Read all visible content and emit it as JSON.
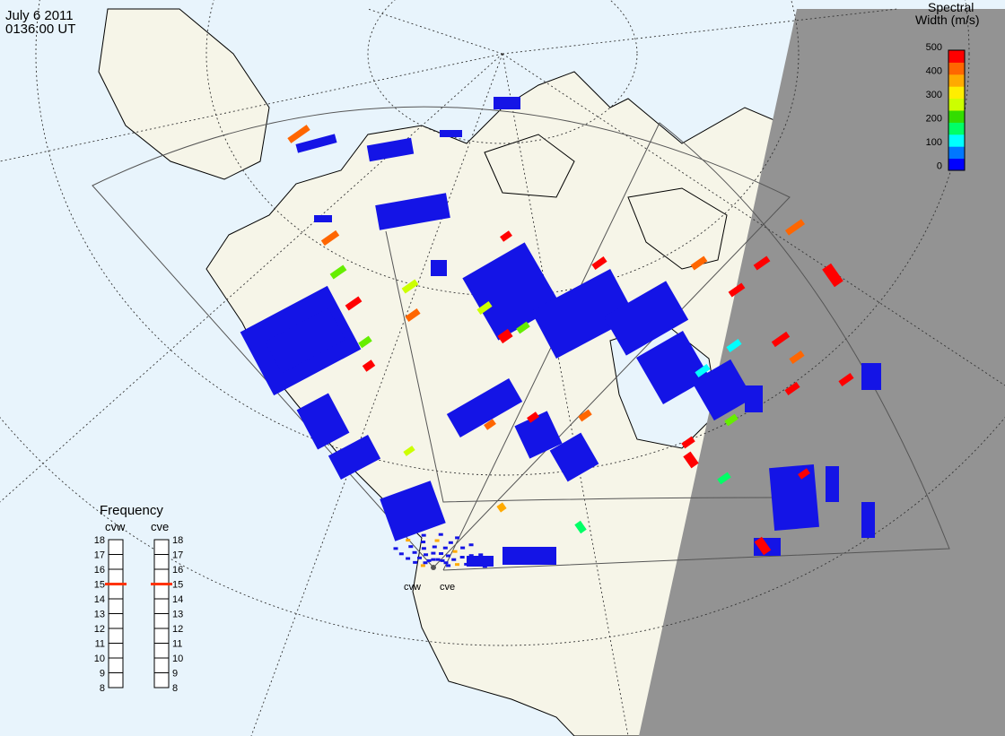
{
  "header": {
    "date": "July  6 2011",
    "time": "0136:00 UT"
  },
  "colorbar": {
    "title_line1": "Spectral",
    "title_line2": "Width (m/s)",
    "ticks": [
      "500",
      "400",
      "300",
      "200",
      "100",
      "0"
    ],
    "colors": [
      "#0000ff",
      "#0077ff",
      "#00ffff",
      "#00ff66",
      "#33dd00",
      "#ccff00",
      "#ffee00",
      "#ffaa00",
      "#ff6600",
      "#ff0000"
    ]
  },
  "radars": {
    "cvw": {
      "label": "cvw"
    },
    "cve": {
      "label": "cve"
    }
  },
  "frequency": {
    "title": "Frequency",
    "left_label": "cvw",
    "right_label": "cve",
    "ticks": [
      "18",
      "17",
      "16",
      "15",
      "14",
      "13",
      "12",
      "11",
      "10",
      "9",
      "8"
    ],
    "cvw_mhz": 15,
    "cve_mhz": 15,
    "indicator_color": "#ff3300"
  },
  "map_colors": {
    "ocean": "#e8f4fc",
    "land": "#f6f5e8",
    "night": "#939393",
    "coast": "#000000",
    "grid": "#333333"
  }
}
